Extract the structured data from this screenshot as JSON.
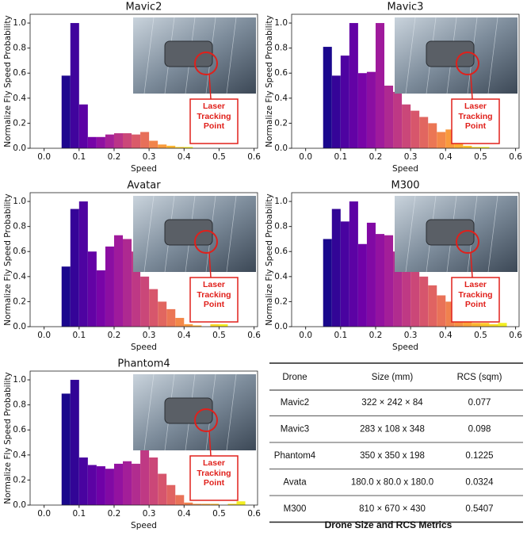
{
  "chart_data": [
    {
      "type": "histogram",
      "title": "Mavic2",
      "xlabel": "Speed",
      "ylabel": "Normalize Fly Speed Probability",
      "bins": [
        0.05,
        0.075,
        0.1,
        0.125,
        0.15,
        0.175,
        0.2,
        0.225,
        0.25,
        0.275,
        0.3,
        0.325,
        0.35,
        0.375,
        0.4,
        0.425
      ],
      "values": [
        0.58,
        1.0,
        0.35,
        0.09,
        0.09,
        0.11,
        0.12,
        0.12,
        0.11,
        0.13,
        0.06,
        0.03,
        0.02,
        0.01,
        0.01
      ],
      "xlim": [
        -0.04,
        0.61
      ],
      "ylim": [
        0,
        1.07
      ],
      "xticks": [
        {
          "value": 0,
          "label": "0.0"
        },
        0.1,
        0.2,
        0.3,
        0.4,
        0.5,
        0.6
      ],
      "yticks": [
        {
          "value": 0,
          "label": "0.0"
        },
        0.2,
        0.4,
        0.6,
        0.8,
        {
          "value": 1,
          "label": "1.0"
        }
      ],
      "colormap": [
        "#0d0887",
        "#46039f",
        "#7201a8",
        "#9c179e",
        "#bd3786",
        "#d8576b",
        "#ed7953",
        "#fb9f3a",
        "#fdca26",
        "#f0f921"
      ],
      "annotation": "Laser Tracking Point"
    },
    {
      "type": "histogram",
      "title": "Mavic3",
      "xlabel": "Speed",
      "ylabel": "Normalize Fly Speed Probability",
      "bins": [
        0.05,
        0.075,
        0.1,
        0.125,
        0.15,
        0.175,
        0.2,
        0.225,
        0.25,
        0.275,
        0.3,
        0.325,
        0.35,
        0.375,
        0.4,
        0.425,
        0.45,
        0.475,
        0.5,
        0.525
      ],
      "values": [
        0.81,
        0.58,
        0.74,
        1.0,
        0.6,
        0.61,
        1.0,
        0.5,
        0.45,
        0.35,
        0.3,
        0.25,
        0.2,
        0.13,
        0.15,
        0.13,
        0.02,
        0.01,
        0.01
      ],
      "xlim": [
        -0.04,
        0.61
      ],
      "ylim": [
        0,
        1.07
      ],
      "xticks": [
        {
          "value": 0,
          "label": "0.0"
        },
        0.1,
        0.2,
        0.3,
        0.4,
        0.5,
        0.6
      ],
      "yticks": [
        {
          "value": 0,
          "label": "0.0"
        },
        0.2,
        0.4,
        0.6,
        0.8,
        {
          "value": 1,
          "label": "1.0"
        }
      ],
      "colormap": [
        "#0d0887",
        "#46039f",
        "#7201a8",
        "#9c179e",
        "#bd3786",
        "#d8576b",
        "#ed7953",
        "#fb9f3a",
        "#fdca26",
        "#f0f921"
      ],
      "annotation": "Laser Tracking Point"
    },
    {
      "type": "histogram",
      "title": "Avatar",
      "xlabel": "Speed",
      "ylabel": "Normalize Fly Speed Probability",
      "bins": [
        0.05,
        0.075,
        0.1,
        0.125,
        0.15,
        0.175,
        0.2,
        0.225,
        0.25,
        0.275,
        0.3,
        0.325,
        0.35,
        0.375,
        0.4,
        0.425,
        0.45,
        0.475,
        0.5,
        0.525
      ],
      "values": [
        0.48,
        0.94,
        1.0,
        0.6,
        0.45,
        0.64,
        0.73,
        0.7,
        0.6,
        0.4,
        0.3,
        0.2,
        0.14,
        0.07,
        0.02,
        0.01,
        0,
        0.02,
        0.02
      ],
      "xlim": [
        -0.04,
        0.61
      ],
      "ylim": [
        0,
        1.07
      ],
      "xticks": [
        {
          "value": 0,
          "label": "0.0"
        },
        0.1,
        0.2,
        0.3,
        0.4,
        0.5,
        0.6
      ],
      "yticks": [
        {
          "value": 0,
          "label": "0.0"
        },
        0.2,
        0.4,
        0.6,
        0.8,
        {
          "value": 1,
          "label": "1.0"
        }
      ],
      "colormap": [
        "#0d0887",
        "#46039f",
        "#7201a8",
        "#9c179e",
        "#bd3786",
        "#d8576b",
        "#ed7953",
        "#fb9f3a",
        "#fdca26",
        "#f0f921"
      ],
      "annotation": "Laser Tracking Point"
    },
    {
      "type": "histogram",
      "title": "M300",
      "xlabel": "Speed",
      "ylabel": "Normalize Fly Speed Probability",
      "bins": [
        0.05,
        0.075,
        0.1,
        0.125,
        0.15,
        0.175,
        0.2,
        0.225,
        0.25,
        0.275,
        0.3,
        0.325,
        0.35,
        0.375,
        0.4,
        0.425,
        0.45,
        0.475,
        0.5,
        0.525,
        0.55,
        0.575
      ],
      "values": [
        0.7,
        0.94,
        0.84,
        1.0,
        0.66,
        0.83,
        0.74,
        0.73,
        0.6,
        0.55,
        0.48,
        0.4,
        0.33,
        0.25,
        0.2,
        0.16,
        0.13,
        0.03,
        0.03,
        0.02,
        0.03
      ],
      "xlim": [
        -0.04,
        0.61
      ],
      "ylim": [
        0,
        1.07
      ],
      "xticks": [
        {
          "value": 0,
          "label": "0.0"
        },
        0.1,
        0.2,
        0.3,
        0.4,
        0.5,
        0.6
      ],
      "yticks": [
        {
          "value": 0,
          "label": "0.0"
        },
        0.2,
        0.4,
        0.6,
        0.8,
        {
          "value": 1,
          "label": "1.0"
        }
      ],
      "colormap": [
        "#0d0887",
        "#46039f",
        "#7201a8",
        "#9c179e",
        "#bd3786",
        "#d8576b",
        "#ed7953",
        "#fb9f3a",
        "#fdca26",
        "#f0f921"
      ],
      "annotation": "Laser Tracking Point"
    },
    {
      "type": "histogram",
      "title": "Phantom4",
      "xlabel": "Speed",
      "ylabel": "Normalize Fly Speed Probability",
      "bins": [
        0.05,
        0.075,
        0.1,
        0.125,
        0.15,
        0.175,
        0.2,
        0.225,
        0.25,
        0.275,
        0.3,
        0.325,
        0.35,
        0.375,
        0.4,
        0.425,
        0.45,
        0.475,
        0.5,
        0.525,
        0.55,
        0.575
      ],
      "values": [
        0.89,
        1.0,
        0.38,
        0.32,
        0.31,
        0.29,
        0.33,
        0.35,
        0.33,
        0.44,
        0.38,
        0.25,
        0.16,
        0.08,
        0.02,
        0.01,
        0.01,
        0.01,
        0,
        0.01,
        0.03
      ],
      "xlim": [
        -0.04,
        0.61
      ],
      "ylim": [
        0,
        1.07
      ],
      "xticks": [
        {
          "value": 0,
          "label": "0.0"
        },
        0.1,
        0.2,
        0.3,
        0.4,
        0.5,
        0.6
      ],
      "yticks": [
        {
          "value": 0,
          "label": "0.0"
        },
        0.2,
        0.4,
        0.6,
        0.8,
        {
          "value": 1,
          "label": "1.0"
        }
      ],
      "colormap": [
        "#0d0887",
        "#46039f",
        "#7201a8",
        "#9c179e",
        "#bd3786",
        "#d8576b",
        "#ed7953",
        "#fb9f3a",
        "#fdca26",
        "#f0f921"
      ],
      "annotation": "Laser Tracking Point"
    }
  ],
  "table": {
    "header": [
      "Drone",
      "Size (mm)",
      "RCS (sqm)"
    ],
    "rows": [
      [
        "Mavic2",
        "322 × 242 × 84",
        "0.077"
      ],
      [
        "Mavic3",
        "283 x 108 x 348",
        "0.098"
      ],
      [
        "Phantom4",
        "350 x 350 x 198",
        "0.1225"
      ],
      [
        "Avata",
        "180.0 x 80.0 x 180.0",
        "0.0324"
      ],
      [
        "M300",
        "810 × 670 × 430",
        "0.5407"
      ]
    ],
    "caption": "Drone Size and RCS Metrics"
  }
}
